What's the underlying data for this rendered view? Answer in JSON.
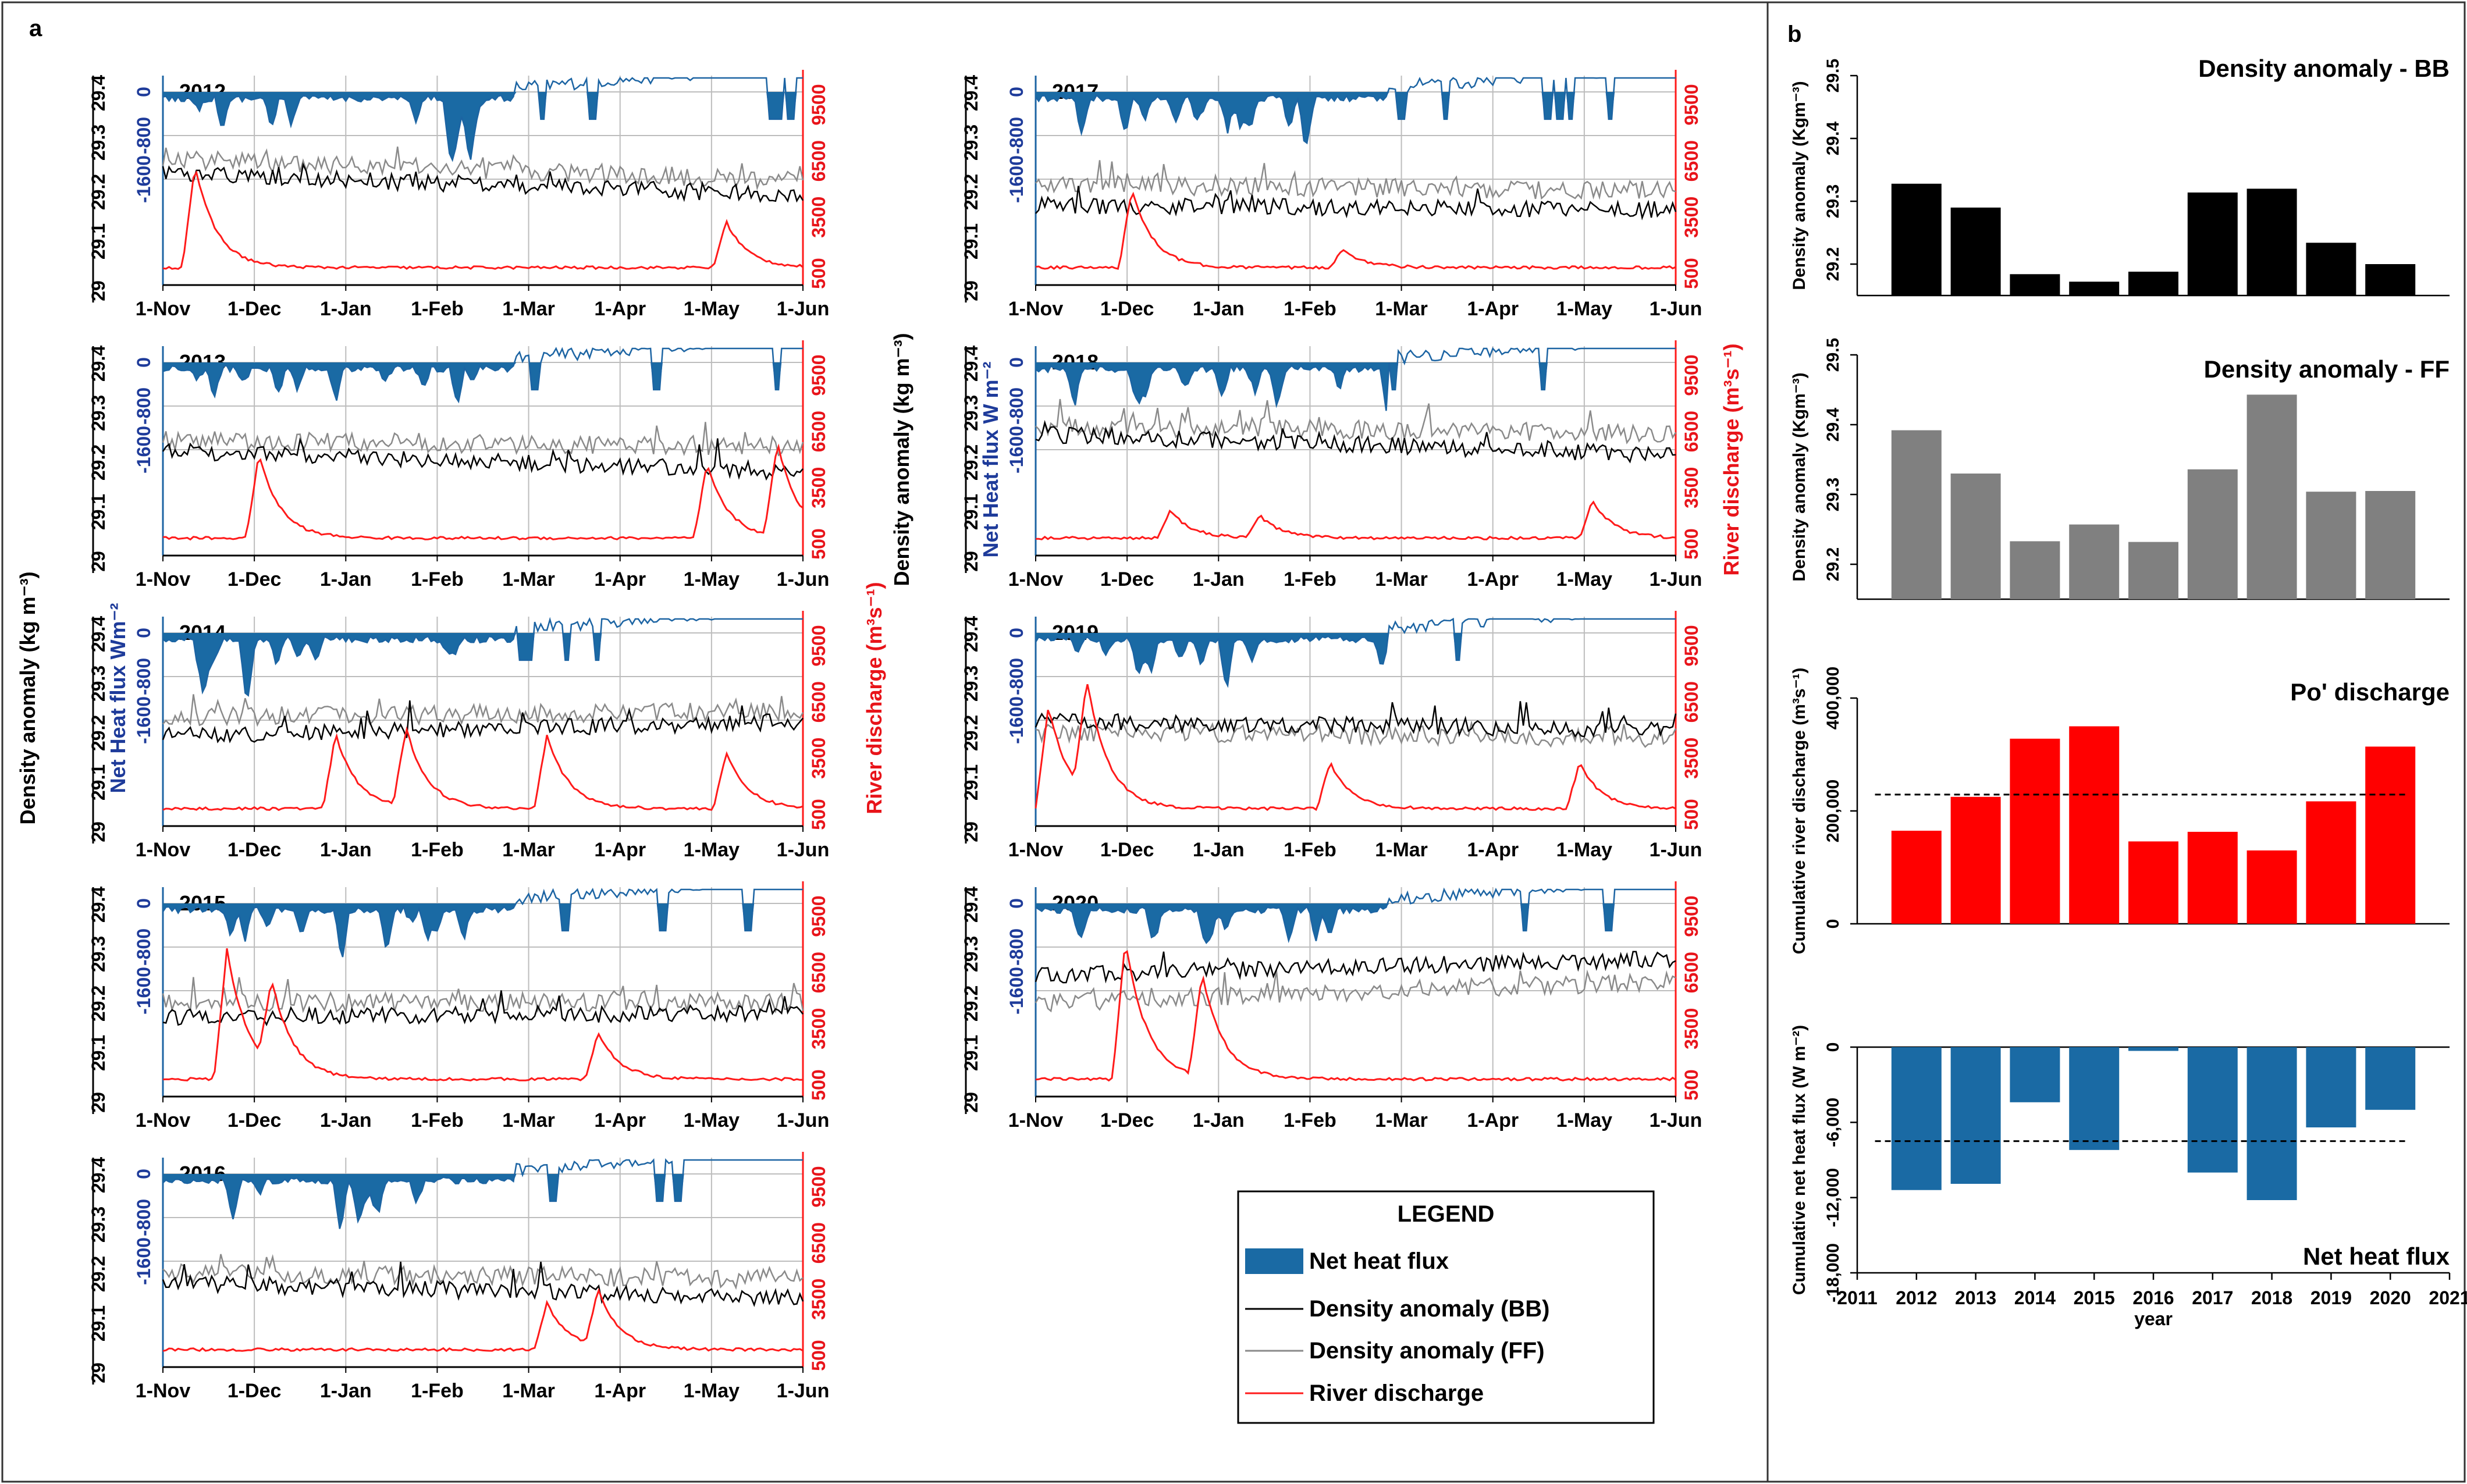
{
  "figure": {
    "panel_a_label": "a",
    "panel_b_label": "b",
    "colors": {
      "heat": "#1c64a3",
      "heat_bar": "#1a6aa4",
      "bb": "#000000",
      "ff": "#8a8a8a",
      "ff_bar": "#808080",
      "river": "#ff1a1a",
      "river_bar": "#ff0000",
      "grid": "#bdbdbd",
      "blue_text": "#1e3b9a",
      "red_text": "#e8141a"
    }
  },
  "panel_a": {
    "x_ticks": [
      "1-Nov",
      "1-Dec",
      "1-Jan",
      "1-Feb",
      "1-Mar",
      "1-Apr",
      "1-May",
      "1-Jun"
    ],
    "density_ticks": [
      "29",
      "29.1",
      "29.2",
      "29.3",
      "29.4"
    ],
    "heat_ticks": [
      "-1600",
      "-800",
      "0"
    ],
    "river_ticks": [
      "500",
      "3500",
      "6500",
      "9500"
    ],
    "axis_titles": {
      "density_left": "Density anomaly (kg m⁻³)",
      "heat_left": "Net Heat flux Wm⁻²",
      "river_left": "River discharge (m³s⁻¹)",
      "density_right": "Density anomaly (kg m⁻³)",
      "heat_right": "Net Heat flux W m⁻²",
      "river_right": "River discharge (m³s⁻¹)"
    },
    "years": [
      "2012",
      "2013",
      "2014",
      "2015",
      "2016",
      "2017",
      "2018",
      "2019",
      "2020"
    ],
    "legend": {
      "title": "LEGEND",
      "items": [
        "Net heat flux",
        "Density anomaly (BB)",
        "Density anomaly (FF)",
        "River discharge"
      ]
    }
  },
  "chart_data": [
    {
      "type": "bar",
      "title": "Density anomaly - BB",
      "ylabel": "Density anomaly (Kgm⁻³)",
      "categories": [
        "2012",
        "2013",
        "2014",
        "2015",
        "2016",
        "2017",
        "2018",
        "2019",
        "2020"
      ],
      "values": [
        29.328,
        29.29,
        29.184,
        29.172,
        29.188,
        29.314,
        29.32,
        29.234,
        29.2
      ],
      "ylim": [
        29.15,
        29.5
      ],
      "yticks": [
        "29.2",
        "29.3",
        "29.4",
        "29.5"
      ]
    },
    {
      "type": "bar",
      "title": "Density anomaly - FF",
      "ylabel": "Density anomaly (Kgm⁻³)",
      "categories": [
        "2012",
        "2013",
        "2014",
        "2015",
        "2016",
        "2017",
        "2018",
        "2019",
        "2020"
      ],
      "values": [
        29.392,
        29.33,
        29.233,
        29.257,
        29.232,
        29.336,
        29.443,
        29.304,
        29.305
      ],
      "ylim": [
        29.15,
        29.5
      ],
      "yticks": [
        "29.2",
        "29.3",
        "29.4",
        "29.5"
      ]
    },
    {
      "type": "bar",
      "title": "Po' discharge",
      "ylabel": "Cumulative river discharge (m³s⁻¹)",
      "categories": [
        "2012",
        "2013",
        "2014",
        "2015",
        "2016",
        "2017",
        "2018",
        "2019",
        "2020"
      ],
      "values": [
        165000,
        225000,
        328000,
        350000,
        146000,
        163000,
        130000,
        217000,
        314000
      ],
      "mean_line": 229000,
      "ylim": [
        0,
        400000
      ],
      "yticks": [
        "0",
        "200,000",
        "400,000"
      ]
    },
    {
      "type": "bar",
      "title": "Net heat flux",
      "ylabel": "Cumulative net heat flux (W m⁻²)",
      "xlabel": "year",
      "categories": [
        "2012",
        "2013",
        "2014",
        "2015",
        "2016",
        "2017",
        "2018",
        "2019",
        "2020"
      ],
      "values": [
        -11400,
        -10900,
        -4400,
        -8200,
        -300,
        -10000,
        -12200,
        -6400,
        -5000
      ],
      "mean_line": -7500,
      "ylim": [
        -18000,
        0
      ],
      "yticks": [
        "-18,000",
        "-12,000",
        "-6,000",
        "0"
      ],
      "xticks": [
        "2011",
        "2012",
        "2013",
        "2014",
        "2015",
        "2016",
        "2017",
        "2018",
        "2019",
        "2020",
        "2021"
      ]
    }
  ]
}
